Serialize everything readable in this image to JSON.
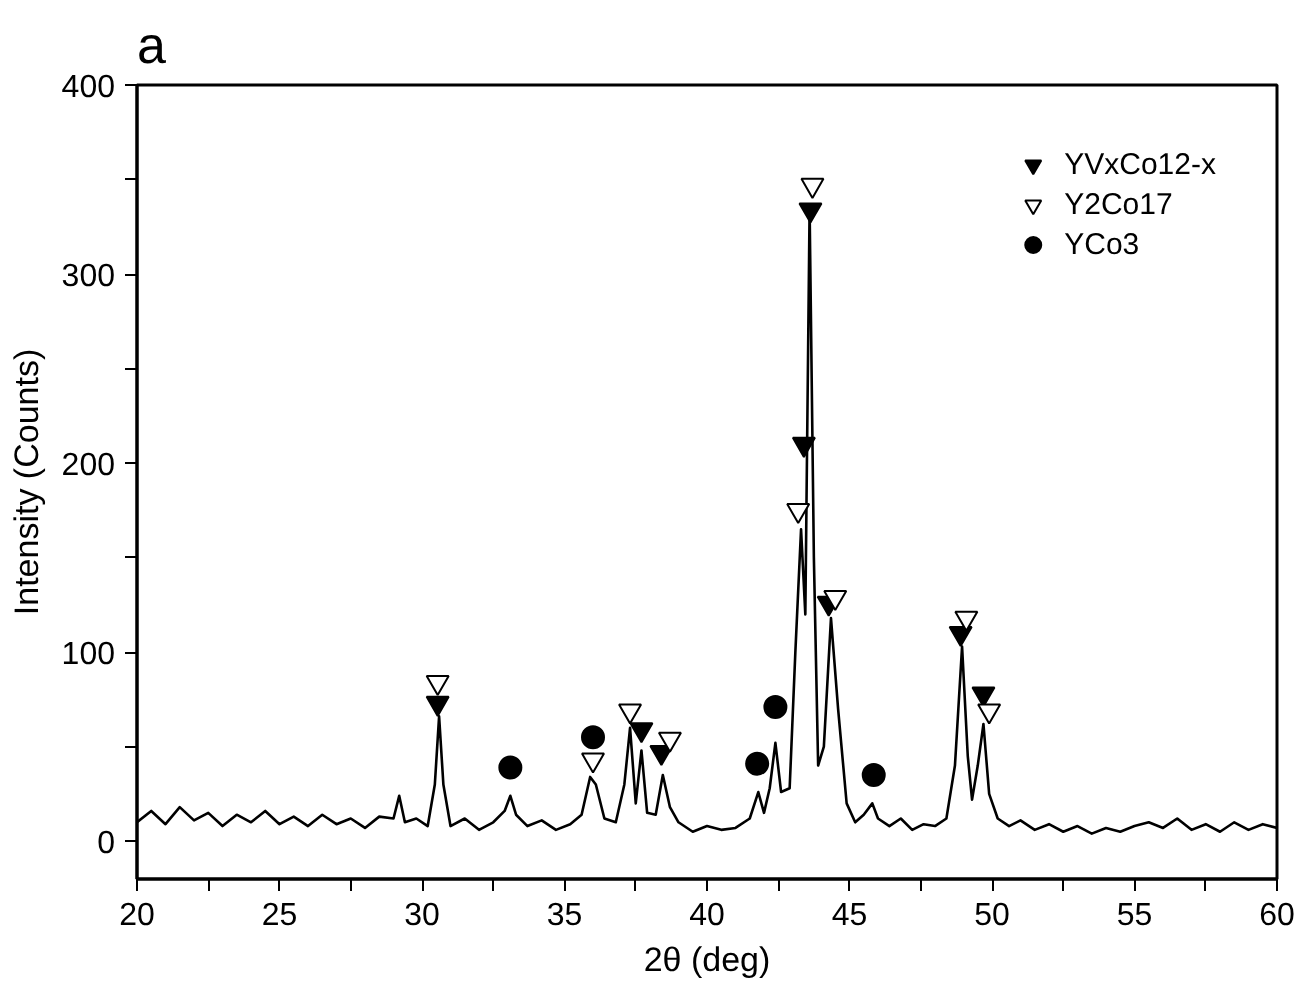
{
  "chart_data": {
    "type": "line",
    "title": "a",
    "xlabel": "2θ (deg)",
    "ylabel": "Intensity (Counts)",
    "xlim": [
      20,
      60
    ],
    "ylim": [
      -20,
      400
    ],
    "xticks": [
      20,
      {
        "value": 22.5,
        "label": null
      },
      25,
      {
        "value": 27.5,
        "label": null
      },
      30,
      {
        "value": 32.5,
        "label": null
      },
      35,
      {
        "value": 37.5,
        "label": null
      },
      40,
      {
        "value": 42.5,
        "label": null
      },
      45,
      {
        "value": 47.5,
        "label": null
      },
      50,
      {
        "value": 52.5,
        "label": null
      },
      55,
      {
        "value": 57.5,
        "label": null
      },
      60
    ],
    "yticks": [
      0,
      {
        "value": 50,
        "label": null
      },
      100,
      {
        "value": 150,
        "label": null
      },
      200,
      {
        "value": 250,
        "label": null
      },
      300,
      {
        "value": 350,
        "label": null
      },
      400
    ],
    "grid": false,
    "legend": "top right",
    "series": [
      {
        "color": "#000000",
        "marker": "none",
        "line_style": "solid",
        "x": [
          20,
          20.5,
          21,
          21.5,
          22,
          22.5,
          23,
          23.5,
          24,
          24.5,
          25,
          25.5,
          26,
          26.5,
          27,
          27.5,
          28,
          28.5,
          29,
          29.2,
          29.4,
          29.8,
          30.2,
          30.45,
          30.6,
          30.75,
          31,
          31.5,
          32,
          32.5,
          32.9,
          33.1,
          33.3,
          33.7,
          34.2,
          34.7,
          35.2,
          35.6,
          35.9,
          36.1,
          36.4,
          36.8,
          37.1,
          37.3,
          37.5,
          37.7,
          37.9,
          38.2,
          38.45,
          38.7,
          39,
          39.5,
          40,
          40.5,
          41,
          41.5,
          41.8,
          42,
          42.2,
          42.4,
          42.6,
          42.9,
          43.1,
          43.3,
          43.45,
          43.6,
          43.75,
          43.9,
          44.1,
          44.35,
          44.6,
          44.9,
          45.2,
          45.5,
          45.8,
          46,
          46.4,
          46.8,
          47.2,
          47.6,
          48,
          48.4,
          48.7,
          48.95,
          49.15,
          49.3,
          49.5,
          49.7,
          49.9,
          50.2,
          50.6,
          51,
          51.5,
          52,
          52.5,
          53,
          53.5,
          54,
          54.5,
          55,
          55.5,
          56,
          56.5,
          57,
          57.5,
          58,
          58.5,
          59,
          59.5,
          60
        ],
        "values": [
          10,
          16,
          9,
          18,
          11,
          15,
          8,
          14,
          10,
          16,
          9,
          13,
          8,
          14,
          9,
          12,
          7,
          13,
          12,
          24,
          10,
          12,
          8,
          30,
          66,
          30,
          8,
          12,
          6,
          10,
          16,
          24,
          14,
          8,
          11,
          6,
          9,
          14,
          34,
          30,
          12,
          10,
          30,
          60,
          20,
          48,
          15,
          14,
          35,
          18,
          10,
          5,
          8,
          6,
          7,
          12,
          26,
          15,
          28,
          52,
          26,
          28,
          100,
          165,
          120,
          335,
          150,
          40,
          50,
          118,
          70,
          20,
          10,
          14,
          20,
          12,
          8,
          12,
          6,
          9,
          8,
          12,
          40,
          103,
          45,
          22,
          40,
          62,
          25,
          12,
          8,
          11,
          6,
          9,
          5,
          8,
          4,
          7,
          5,
          8,
          10,
          7,
          12,
          6,
          9,
          5,
          10,
          6,
          9,
          7
        ]
      },
      {
        "type": "scatter",
        "name": "YVxCo12-x",
        "color": "#000000",
        "marker": "triangle",
        "x": [
          30.55,
          37.7,
          38.4,
          43.4,
          43.63,
          44.27,
          48.9,
          49.7
        ],
        "values": [
          73,
          59,
          47,
          210,
          334,
          126,
          110,
          78
        ]
      },
      {
        "type": "scatter",
        "name": "Y2Co17",
        "color": "#ffffff",
        "marker": "triangle",
        "x": [
          30.55,
          36.0,
          37.3,
          38.7,
          43.2,
          43.7,
          44.5,
          49.1,
          49.9
        ],
        "values": [
          84,
          43,
          69,
          54,
          175,
          347,
          129,
          118,
          69
        ]
      },
      {
        "type": "scatter",
        "name": "YCo3",
        "color": "#000000",
        "marker": "circle",
        "x": [
          33.1,
          36.0,
          41.76,
          42.4,
          45.85
        ],
        "values": [
          39,
          55,
          41,
          71,
          35
        ]
      }
    ]
  }
}
